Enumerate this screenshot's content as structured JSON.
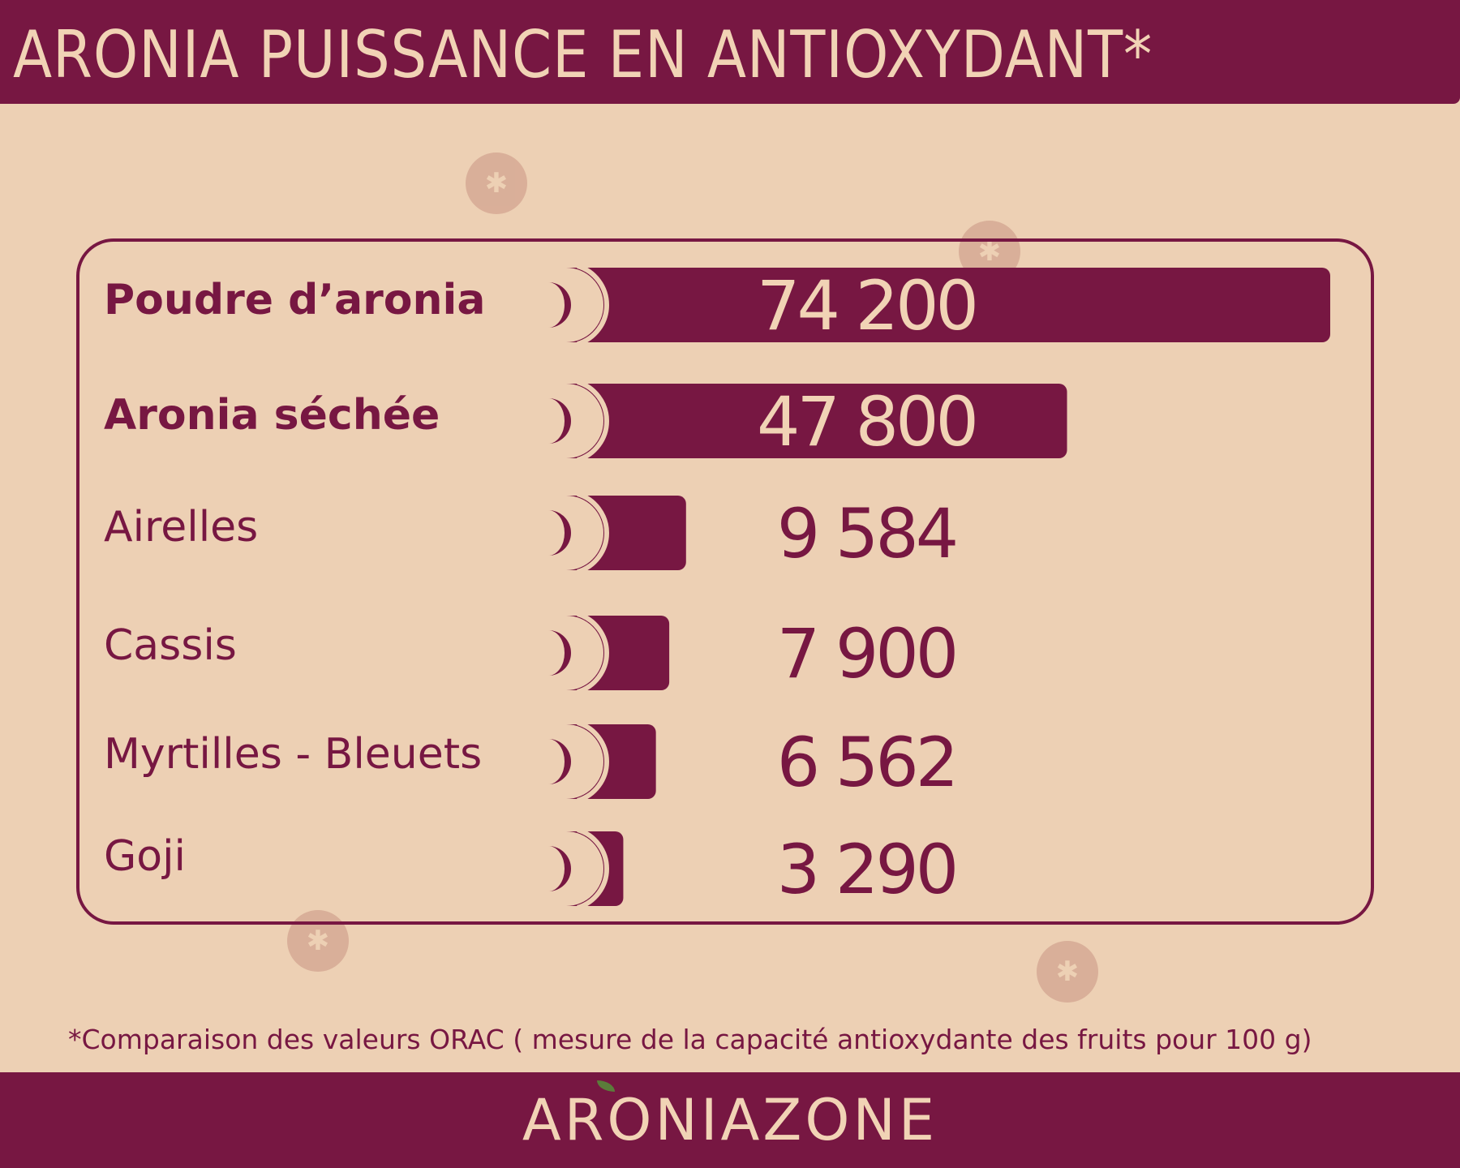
{
  "header": {
    "title": "ARONIA PUISSANCE EN ANTIOXYDANT*"
  },
  "chart_data": {
    "type": "bar",
    "orientation": "horizontal",
    "title": "ARONIA PUISSANCE EN ANTIOXYDANT*",
    "categories": [
      "Poudre d’aronia",
      "Aronia séchée",
      "Airelles",
      "Cassis",
      "Myrtilles - Bleuets",
      "Goji"
    ],
    "values": [
      74200,
      47800,
      9584,
      7900,
      6562,
      3290
    ],
    "value_labels": [
      "74 200",
      "47 800",
      "9 584",
      "7 900",
      "6 562",
      "3 290"
    ],
    "bold_categories": [
      "Poudre d’aronia",
      "Aronia séchée"
    ],
    "legend": "none",
    "grid": false
  },
  "footnote": "*Comparaison des valeurs ORAC ( mesure de la capacité antioxydante des fruits pour 100 g)",
  "footer": {
    "brand": "ARONIAZONE"
  },
  "colors": {
    "primary": "#771742",
    "background": "#edd0b4",
    "light_text": "#f1d3b5",
    "berry_decoration": "#d3a490"
  },
  "decorations": {
    "icon": "berry-icon"
  }
}
